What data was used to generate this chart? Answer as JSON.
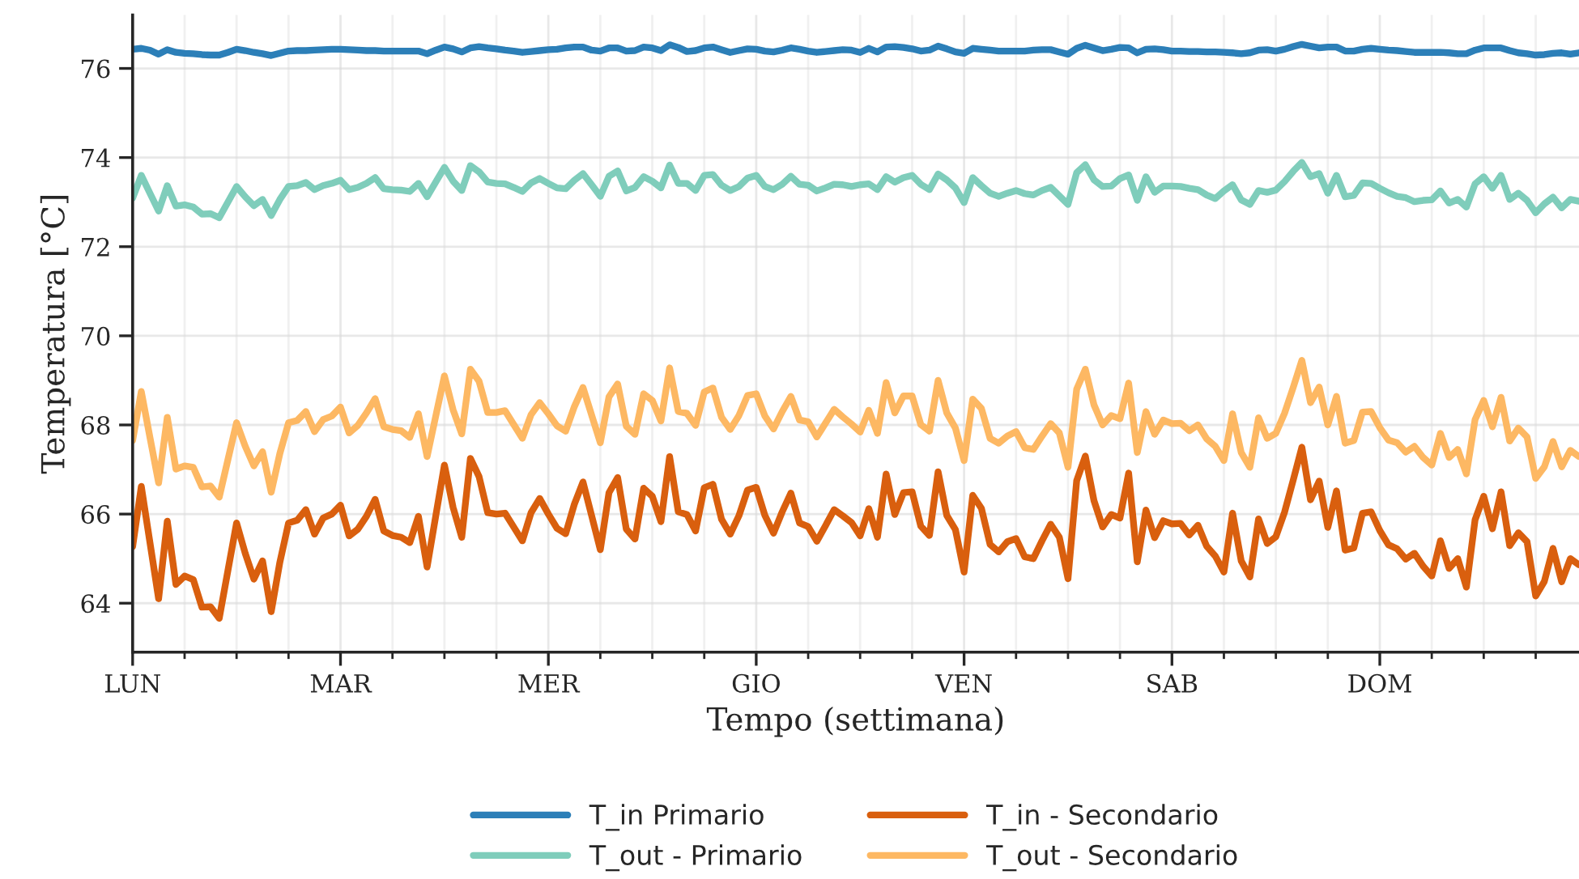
{
  "chart_data": {
    "type": "line",
    "xlabel": "Tempo (settimana)",
    "ylabel": "Temperatura [°C]",
    "ylim": [
      62.9,
      77.2
    ],
    "yticks": [
      64,
      66,
      68,
      70,
      72,
      74,
      76
    ],
    "grid": true,
    "legend": "bottom",
    "marker": "none",
    "line_style": "solid",
    "categories": [
      "LUN",
      null,
      null,
      null,
      null,
      null,
      null,
      null,
      null,
      null,
      null,
      null,
      null,
      null,
      null,
      null,
      null,
      null,
      null,
      null,
      null,
      null,
      null,
      null,
      "MAR",
      null,
      null,
      null,
      null,
      null,
      null,
      null,
      null,
      null,
      null,
      null,
      null,
      null,
      null,
      null,
      null,
      null,
      null,
      null,
      null,
      null,
      null,
      null,
      "MER",
      null,
      null,
      null,
      null,
      null,
      null,
      null,
      null,
      null,
      null,
      null,
      null,
      null,
      null,
      null,
      null,
      null,
      null,
      null,
      null,
      null,
      null,
      null,
      "GIO",
      null,
      null,
      null,
      null,
      null,
      null,
      null,
      null,
      null,
      null,
      null,
      null,
      null,
      null,
      null,
      null,
      null,
      null,
      null,
      null,
      null,
      null,
      null,
      "VEN",
      null,
      null,
      null,
      null,
      null,
      null,
      null,
      null,
      null,
      null,
      null,
      null,
      null,
      null,
      null,
      null,
      null,
      null,
      null,
      null,
      null,
      null,
      null,
      "SAB",
      null,
      null,
      null,
      null,
      null,
      null,
      null,
      null,
      null,
      null,
      null,
      null,
      null,
      null,
      null,
      null,
      null,
      null,
      null,
      null,
      null,
      null,
      null,
      "DOM",
      null,
      null,
      null,
      null,
      null,
      null,
      null,
      null,
      null,
      null,
      null,
      null,
      null,
      null,
      null,
      null,
      null,
      null,
      null,
      null,
      null,
      null,
      null
    ],
    "series": [
      {
        "name": "T_in Primario",
        "color": "#2c7fb8",
        "values": [
          76.43,
          76.45,
          76.41,
          76.32,
          76.42,
          76.36,
          76.34,
          76.33,
          76.31,
          76.3,
          76.3,
          76.36,
          76.43,
          76.4,
          76.36,
          76.33,
          76.29,
          76.34,
          76.39,
          76.4,
          76.4,
          76.41,
          76.42,
          76.43,
          76.43,
          76.42,
          76.41,
          76.4,
          76.4,
          76.39,
          76.39,
          76.39,
          76.39,
          76.39,
          76.33,
          76.41,
          76.48,
          76.44,
          76.37,
          76.46,
          76.49,
          76.46,
          76.44,
          76.41,
          76.39,
          76.36,
          76.38,
          76.4,
          76.42,
          76.43,
          76.46,
          76.48,
          76.48,
          76.41,
          76.39,
          76.46,
          76.46,
          76.39,
          76.4,
          76.48,
          76.46,
          76.4,
          76.53,
          76.47,
          76.38,
          76.4,
          76.46,
          76.48,
          76.42,
          76.36,
          76.4,
          76.44,
          76.43,
          76.39,
          76.37,
          76.41,
          76.46,
          76.43,
          76.39,
          76.36,
          76.38,
          76.4,
          76.42,
          76.41,
          76.36,
          76.45,
          76.37,
          76.48,
          76.49,
          76.47,
          76.44,
          76.39,
          76.41,
          76.5,
          76.44,
          76.37,
          76.34,
          76.45,
          76.43,
          76.41,
          76.39,
          76.39,
          76.39,
          76.39,
          76.41,
          76.42,
          76.42,
          76.37,
          76.32,
          76.45,
          76.52,
          76.46,
          76.4,
          76.43,
          76.47,
          76.46,
          76.35,
          76.43,
          76.44,
          76.42,
          76.39,
          76.39,
          76.38,
          76.38,
          76.37,
          76.37,
          76.36,
          76.35,
          76.33,
          76.35,
          76.41,
          76.42,
          76.39,
          76.43,
          76.49,
          76.54,
          76.5,
          76.46,
          76.48,
          76.48,
          76.39,
          76.39,
          76.43,
          76.45,
          76.43,
          76.41,
          76.4,
          76.38,
          76.36,
          76.36,
          76.36,
          76.36,
          76.35,
          76.33,
          76.33,
          76.41,
          76.46,
          76.46,
          76.46,
          76.4,
          76.35,
          76.33,
          76.3,
          76.31,
          76.34,
          76.35,
          76.32,
          76.35
        ]
      },
      {
        "name": "T_out - Primario",
        "color": "#7fcdbb",
        "values": [
          73.09,
          73.6,
          73.2,
          72.8,
          73.37,
          72.91,
          72.94,
          72.89,
          72.73,
          72.74,
          72.65,
          73.0,
          73.35,
          73.12,
          72.92,
          73.06,
          72.7,
          73.06,
          73.35,
          73.37,
          73.44,
          73.28,
          73.37,
          73.42,
          73.49,
          73.28,
          73.33,
          73.42,
          73.55,
          73.3,
          73.28,
          73.27,
          73.24,
          73.42,
          73.12,
          73.45,
          73.78,
          73.47,
          73.26,
          73.82,
          73.68,
          73.45,
          73.42,
          73.41,
          73.33,
          73.24,
          73.43,
          73.53,
          73.42,
          73.32,
          73.3,
          73.49,
          73.64,
          73.39,
          73.13,
          73.58,
          73.7,
          73.25,
          73.33,
          73.57,
          73.47,
          73.32,
          73.83,
          73.42,
          73.42,
          73.26,
          73.6,
          73.62,
          73.38,
          73.26,
          73.35,
          73.54,
          73.6,
          73.35,
          73.28,
          73.4,
          73.58,
          73.4,
          73.38,
          73.25,
          73.32,
          73.4,
          73.39,
          73.35,
          73.39,
          73.41,
          73.28,
          73.57,
          73.45,
          73.55,
          73.6,
          73.4,
          73.28,
          73.63,
          73.5,
          73.32,
          72.99,
          73.55,
          73.37,
          73.2,
          73.13,
          73.2,
          73.26,
          73.19,
          73.16,
          73.26,
          73.33,
          73.14,
          72.95,
          73.66,
          73.84,
          73.5,
          73.35,
          73.36,
          73.53,
          73.61,
          73.04,
          73.57,
          73.22,
          73.36,
          73.36,
          73.35,
          73.31,
          73.28,
          73.16,
          73.08,
          73.25,
          73.39,
          73.05,
          72.95,
          73.26,
          73.22,
          73.27,
          73.46,
          73.69,
          73.89,
          73.57,
          73.64,
          73.2,
          73.6,
          73.12,
          73.15,
          73.43,
          73.42,
          73.31,
          73.21,
          73.13,
          73.1,
          73.01,
          73.04,
          73.05,
          73.25,
          72.98,
          73.06,
          72.89,
          73.41,
          73.57,
          73.31,
          73.6,
          73.06,
          73.2,
          73.04,
          72.76,
          72.96,
          73.11,
          72.87,
          73.06,
          73.02
        ]
      },
      {
        "name": "T_in - Secondario",
        "color": "#d95f0e",
        "values": [
          65.27,
          66.62,
          65.36,
          64.1,
          65.84,
          64.42,
          64.61,
          64.53,
          63.91,
          63.92,
          63.66,
          64.73,
          65.8,
          65.12,
          64.54,
          64.95,
          63.81,
          64.92,
          65.8,
          65.86,
          66.1,
          65.55,
          65.91,
          66.0,
          66.2,
          65.51,
          65.66,
          65.95,
          66.33,
          65.62,
          65.52,
          65.48,
          65.36,
          65.95,
          64.81,
          65.96,
          67.1,
          66.15,
          65.48,
          67.25,
          66.84,
          66.03,
          66.0,
          66.02,
          65.71,
          65.4,
          66.03,
          66.35,
          66.0,
          65.68,
          65.56,
          66.22,
          66.72,
          65.96,
          65.2,
          66.48,
          66.82,
          65.66,
          65.44,
          66.58,
          66.4,
          65.83,
          67.29,
          66.05,
          65.99,
          65.62,
          66.59,
          66.67,
          65.88,
          65.55,
          65.96,
          66.54,
          66.6,
          65.97,
          65.57,
          66.05,
          66.47,
          65.8,
          65.72,
          65.39,
          65.74,
          66.1,
          65.96,
          65.81,
          65.51,
          66.12,
          65.48,
          66.9,
          65.99,
          66.48,
          66.5,
          65.73,
          65.52,
          66.95,
          65.97,
          65.65,
          64.7,
          66.42,
          66.13,
          65.32,
          65.15,
          65.38,
          65.45,
          65.04,
          65.0,
          65.4,
          65.77,
          65.48,
          64.55,
          66.75,
          67.3,
          66.3,
          65.71,
          65.99,
          65.91,
          66.92,
          64.93,
          66.09,
          65.47,
          65.85,
          65.78,
          65.79,
          65.53,
          65.75,
          65.28,
          65.06,
          64.7,
          66.02,
          64.95,
          64.59,
          65.89,
          65.34,
          65.49,
          66.04,
          66.76,
          67.5,
          66.32,
          66.74,
          65.7,
          66.52,
          65.19,
          65.24,
          66.02,
          66.05,
          65.63,
          65.31,
          65.22,
          64.99,
          65.12,
          64.83,
          64.61,
          65.4,
          64.78,
          65.0,
          64.36,
          65.87,
          66.4,
          65.67,
          66.5,
          65.29,
          65.58,
          65.38,
          64.16,
          64.49,
          65.23,
          64.48,
          65.0,
          64.86
        ]
      },
      {
        "name": "T_out - Secondario",
        "color": "#fdb863",
        "values": [
          67.65,
          68.75,
          67.72,
          66.7,
          68.17,
          67.01,
          67.08,
          67.05,
          66.61,
          66.63,
          66.38,
          67.22,
          68.05,
          67.52,
          67.08,
          67.4,
          66.49,
          67.36,
          68.05,
          68.1,
          68.3,
          67.85,
          68.12,
          68.2,
          68.4,
          67.82,
          67.99,
          68.27,
          68.59,
          67.96,
          67.9,
          67.87,
          67.72,
          68.25,
          67.29,
          68.2,
          69.1,
          68.34,
          67.8,
          69.25,
          68.98,
          68.28,
          68.28,
          68.32,
          68.01,
          67.7,
          68.23,
          68.5,
          68.25,
          67.98,
          67.86,
          68.41,
          68.84,
          68.22,
          67.6,
          68.63,
          68.92,
          67.97,
          67.79,
          68.7,
          68.55,
          68.09,
          69.28,
          68.3,
          68.26,
          67.99,
          68.74,
          68.83,
          68.17,
          67.9,
          68.21,
          68.66,
          68.7,
          68.2,
          67.91,
          68.3,
          68.64,
          68.11,
          68.07,
          67.73,
          68.04,
          68.35,
          68.18,
          68.02,
          67.84,
          68.33,
          67.81,
          68.95,
          68.27,
          68.65,
          68.65,
          68.01,
          67.86,
          69.0,
          68.27,
          67.93,
          67.2,
          68.58,
          68.37,
          67.7,
          67.59,
          67.75,
          67.85,
          67.49,
          67.45,
          67.75,
          68.03,
          67.82,
          67.05,
          68.8,
          69.25,
          68.45,
          68.0,
          68.21,
          68.14,
          68.94,
          67.38,
          68.3,
          67.79,
          68.11,
          68.03,
          68.04,
          67.87,
          68.0,
          67.69,
          67.52,
          67.2,
          68.25,
          67.38,
          67.05,
          68.16,
          67.7,
          67.81,
          68.26,
          68.84,
          69.45,
          68.5,
          68.85,
          68.0,
          68.64,
          67.59,
          67.65,
          68.29,
          68.3,
          67.94,
          67.66,
          67.6,
          67.39,
          67.52,
          67.27,
          67.1,
          67.81,
          67.27,
          67.45,
          66.9,
          68.12,
          68.55,
          67.96,
          68.62,
          67.64,
          67.93,
          67.73,
          66.8,
          67.06,
          67.63,
          67.06,
          67.43,
          67.29
        ]
      }
    ]
  }
}
